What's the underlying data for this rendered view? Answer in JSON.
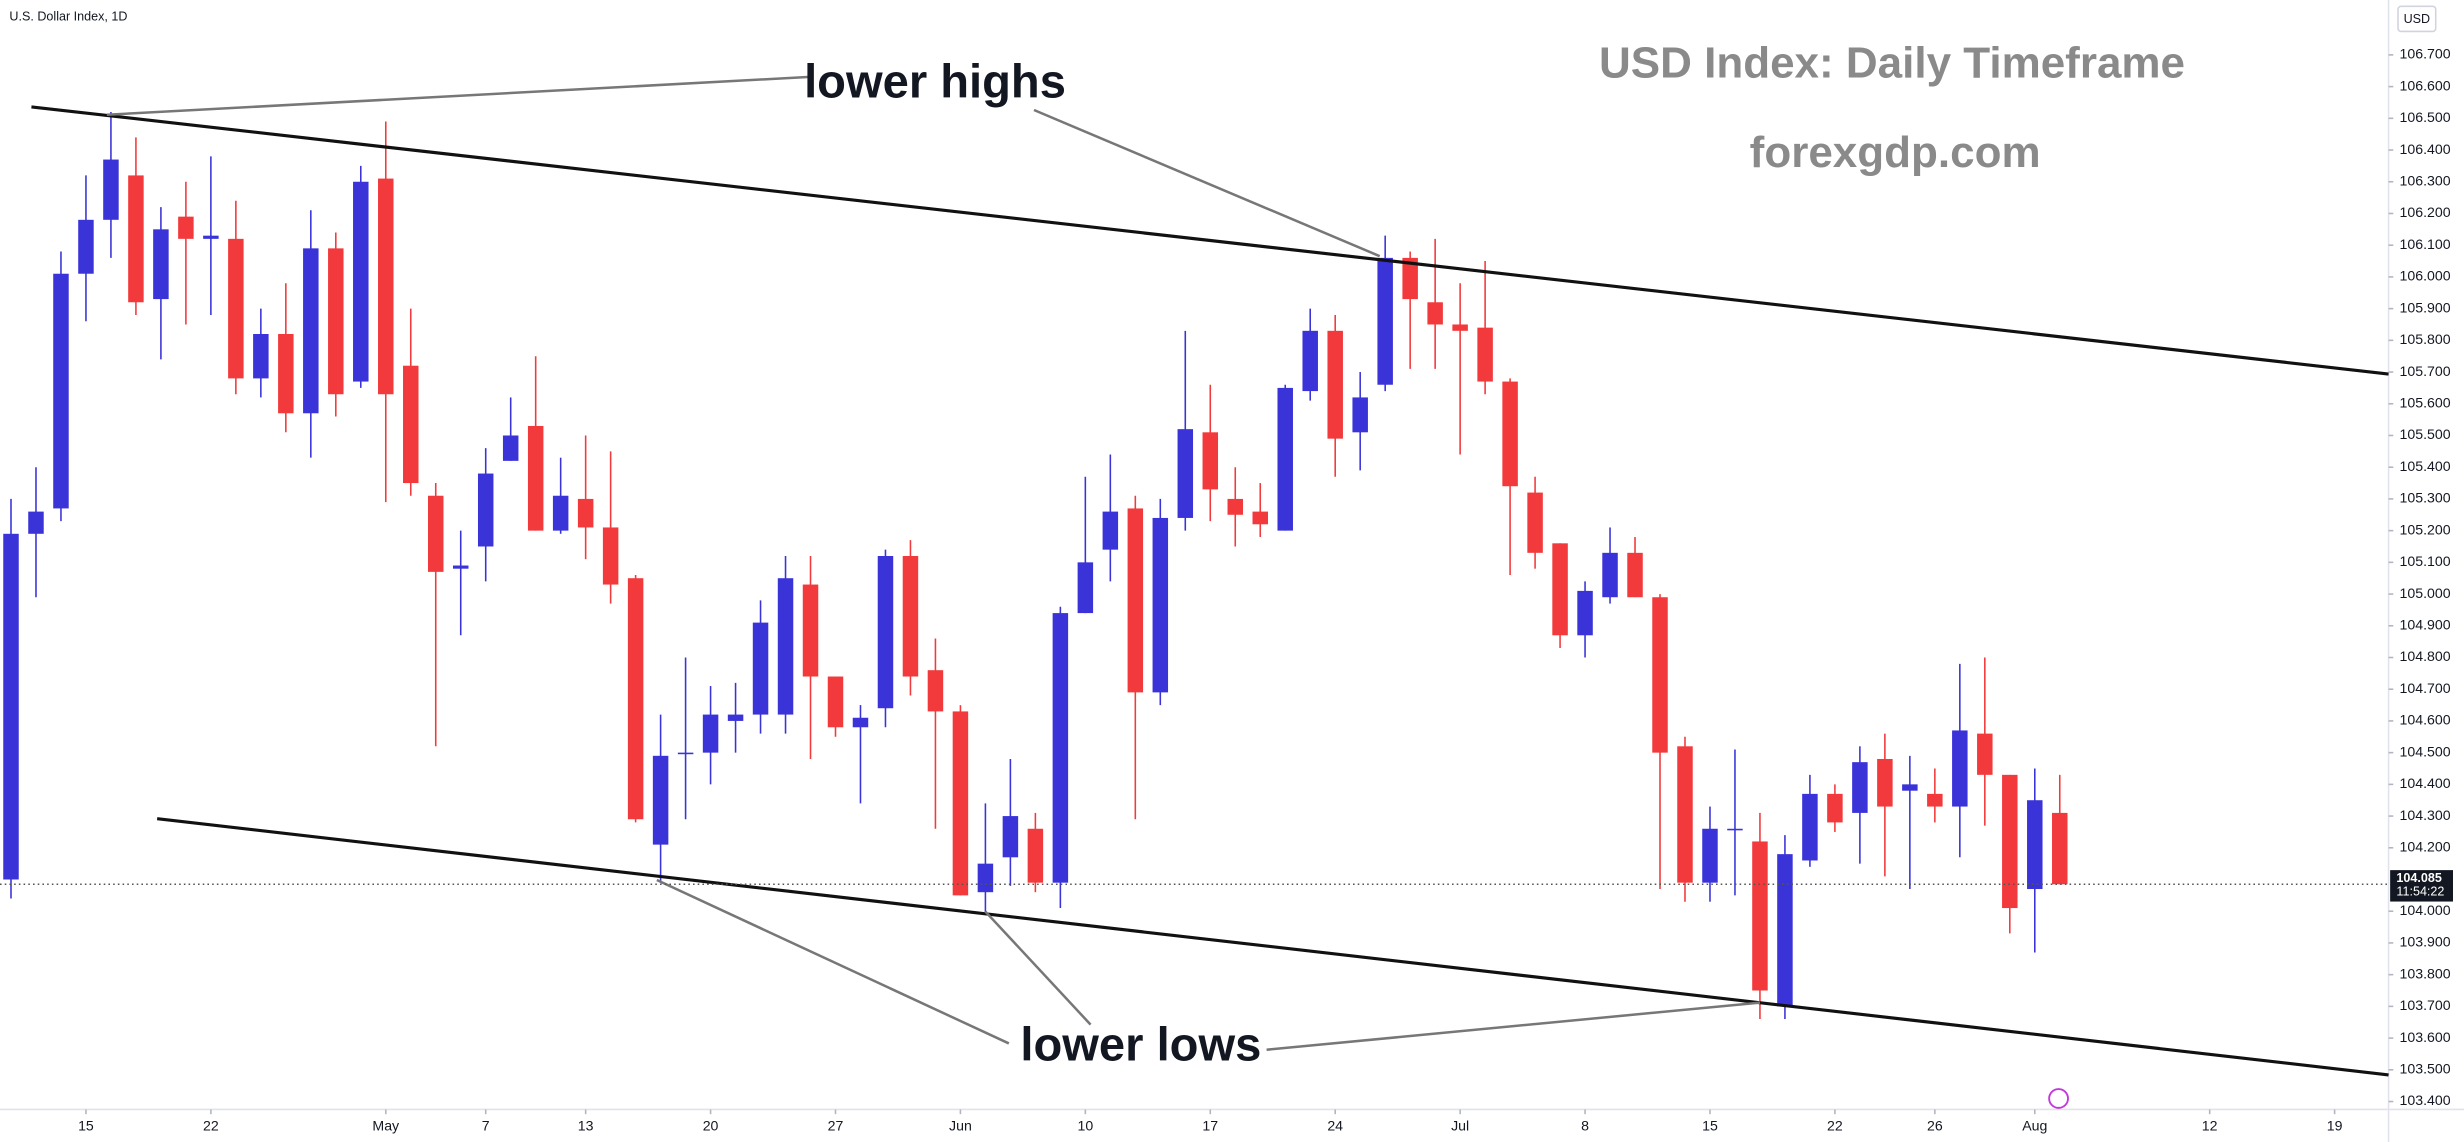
{
  "chart_data": {
    "type": "candlestick",
    "symbol": "U.S. Dollar Index, 1D",
    "currency": "USD",
    "title": "USD Index: Daily Timeframe",
    "subtitle": "forexgdp.com",
    "annotations": [
      "lower highs",
      "lower lows"
    ],
    "up_color": "#3a34d8",
    "down_color": "#f23a3c",
    "open": [
      104.1,
      105.19,
      105.27,
      106.01,
      106.18,
      106.32,
      105.93,
      106.19,
      106.12,
      106.12,
      105.68,
      105.82,
      105.57,
      106.09,
      105.67,
      106.31,
      105.72,
      105.31,
      105.08,
      105.15,
      105.42,
      105.53,
      105.2,
      105.3,
      105.21,
      105.05,
      104.21,
      104.5,
      104.5,
      104.6,
      104.62,
      104.62,
      105.03,
      104.74,
      104.58,
      104.64,
      105.12,
      104.76,
      104.63,
      104.06,
      104.17,
      104.26,
      104.09,
      104.94,
      105.14,
      105.27,
      104.69,
      105.24,
      105.51,
      105.3,
      105.26,
      105.2,
      105.64,
      105.83,
      105.51,
      105.66,
      106.06,
      105.92,
      105.85,
      105.84,
      105.67,
      105.32,
      105.16,
      104.87,
      104.99,
      105.13,
      104.99,
      104.52,
      104.09,
      104.26,
      104.22,
      103.7,
      104.16,
      104.37,
      104.31,
      104.48,
      104.38,
      104.37,
      104.33,
      104.56,
      104.43,
      104.07,
      104.31
    ],
    "high": [
      105.3,
      105.4,
      106.08,
      106.32,
      106.52,
      106.44,
      106.22,
      106.3,
      106.38,
      106.24,
      105.9,
      105.98,
      106.21,
      106.14,
      106.35,
      106.49,
      105.9,
      105.35,
      105.2,
      105.46,
      105.62,
      105.75,
      105.43,
      105.5,
      105.45,
      105.06,
      104.62,
      104.8,
      104.71,
      104.72,
      104.98,
      105.12,
      105.12,
      104.74,
      104.65,
      105.14,
      105.17,
      104.86,
      104.65,
      104.34,
      104.48,
      104.31,
      104.96,
      105.37,
      105.44,
      105.31,
      105.3,
      105.83,
      105.66,
      105.4,
      105.35,
      105.66,
      105.9,
      105.88,
      105.7,
      106.13,
      106.08,
      106.12,
      105.98,
      106.05,
      105.68,
      105.37,
      105.16,
      105.04,
      105.21,
      105.18,
      105.0,
      104.55,
      104.33,
      104.51,
      104.31,
      104.24,
      104.43,
      104.4,
      104.52,
      104.56,
      104.49,
      104.45,
      104.78,
      104.8,
      104.43,
      104.45,
      104.43
    ],
    "low": [
      104.04,
      104.99,
      105.23,
      105.86,
      106.06,
      105.88,
      105.74,
      105.85,
      105.88,
      105.63,
      105.62,
      105.51,
      105.43,
      105.56,
      105.65,
      105.29,
      105.31,
      104.52,
      104.87,
      105.04,
      105.42,
      105.2,
      105.19,
      105.11,
      104.97,
      104.28,
      104.09,
      104.29,
      104.4,
      104.5,
      104.56,
      104.56,
      104.48,
      104.55,
      104.34,
      104.58,
      104.68,
      104.26,
      104.05,
      103.99,
      104.08,
      104.06,
      104.01,
      104.94,
      105.04,
      104.29,
      104.65,
      105.2,
      105.23,
      105.15,
      105.18,
      105.2,
      105.61,
      105.37,
      105.39,
      105.64,
      105.71,
      105.71,
      105.44,
      105.63,
      105.06,
      105.08,
      104.83,
      104.8,
      104.97,
      104.99,
      104.07,
      104.03,
      104.03,
      104.05,
      103.66,
      103.66,
      104.14,
      104.25,
      104.15,
      104.11,
      104.07,
      104.28,
      104.17,
      104.27,
      103.93,
      103.87,
      104.085
    ],
    "close": [
      105.19,
      105.26,
      106.01,
      106.18,
      106.37,
      105.92,
      106.15,
      106.12,
      106.13,
      105.68,
      105.82,
      105.57,
      106.09,
      105.63,
      106.3,
      105.63,
      105.35,
      105.07,
      105.09,
      105.38,
      105.5,
      105.2,
      105.31,
      105.21,
      105.03,
      104.29,
      104.49,
      104.5,
      104.62,
      104.62,
      104.91,
      105.05,
      104.74,
      104.58,
      104.61,
      105.12,
      104.74,
      104.63,
      104.05,
      104.15,
      104.3,
      104.09,
      104.94,
      105.1,
      105.26,
      104.69,
      105.24,
      105.52,
      105.33,
      105.25,
      105.22,
      105.65,
      105.83,
      105.49,
      105.62,
      106.06,
      105.93,
      105.85,
      105.83,
      105.67,
      105.34,
      105.13,
      104.87,
      105.01,
      105.13,
      104.99,
      104.5,
      104.09,
      104.26,
      104.26,
      103.75,
      104.18,
      104.37,
      104.28,
      104.47,
      104.33,
      104.4,
      104.33,
      104.57,
      104.43,
      104.01,
      104.35,
      104.085
    ],
    "last_price": 104.085,
    "countdown": "11:54:22",
    "xlim": [
      -0.44,
      95.16
    ],
    "xticks": [
      {
        "value": 3,
        "label": "15"
      },
      {
        "value": 8,
        "label": "22"
      },
      {
        "value": 15,
        "label": "May"
      },
      {
        "value": 19,
        "label": "7"
      },
      {
        "value": 23,
        "label": "13"
      },
      {
        "value": 28,
        "label": "20"
      },
      {
        "value": 33,
        "label": "27"
      },
      {
        "value": 38,
        "label": "Jun"
      },
      {
        "value": 43,
        "label": "10"
      },
      {
        "value": 48,
        "label": "17"
      },
      {
        "value": 53,
        "label": "24"
      },
      {
        "value": 58,
        "label": "Jul"
      },
      {
        "value": 63,
        "label": "8"
      },
      {
        "value": 68,
        "label": "15"
      },
      {
        "value": 73,
        "label": "22"
      },
      {
        "value": 77,
        "label": "26"
      },
      {
        "value": 81,
        "label": "Aug"
      },
      {
        "value": 88,
        "label": "12"
      },
      {
        "value": 93,
        "label": "19"
      }
    ],
    "ylim": [
      103.375,
      106.873
    ],
    "yticks": [
      {
        "value": 103.4,
        "label": "103.400"
      },
      {
        "value": 103.5,
        "label": "103.500"
      },
      {
        "value": 103.6,
        "label": "103.600"
      },
      {
        "value": 103.7,
        "label": "103.700"
      },
      {
        "value": 103.8,
        "label": "103.800"
      },
      {
        "value": 103.9,
        "label": "103.900"
      },
      {
        "value": 104.0,
        "label": "104.000"
      },
      {
        "value": 104.2,
        "label": "104.200"
      },
      {
        "value": 104.3,
        "label": "104.300"
      },
      {
        "value": 104.4,
        "label": "104.400"
      },
      {
        "value": 104.5,
        "label": "104.500"
      },
      {
        "value": 104.6,
        "label": "104.600"
      },
      {
        "value": 104.7,
        "label": "104.700"
      },
      {
        "value": 104.8,
        "label": "104.800"
      },
      {
        "value": 104.9,
        "label": "104.900"
      },
      {
        "value": 105.0,
        "label": "105.000"
      },
      {
        "value": 105.1,
        "label": "105.100"
      },
      {
        "value": 105.2,
        "label": "105.200"
      },
      {
        "value": 105.3,
        "label": "105.300"
      },
      {
        "value": 105.4,
        "label": "105.400"
      },
      {
        "value": 105.5,
        "label": "105.500"
      },
      {
        "value": 105.6,
        "label": "105.600"
      },
      {
        "value": 105.7,
        "label": "105.700"
      },
      {
        "value": 105.8,
        "label": "105.800"
      },
      {
        "value": 105.9,
        "label": "105.900"
      },
      {
        "value": 106.0,
        "label": "106.000"
      },
      {
        "value": 106.1,
        "label": "106.100"
      },
      {
        "value": 106.2,
        "label": "106.200"
      },
      {
        "value": 106.3,
        "label": "106.300"
      },
      {
        "value": 106.4,
        "label": "106.400"
      },
      {
        "value": 106.5,
        "label": "106.500"
      },
      {
        "value": 106.6,
        "label": "106.600"
      },
      {
        "value": 106.7,
        "label": "106.700"
      }
    ]
  }
}
